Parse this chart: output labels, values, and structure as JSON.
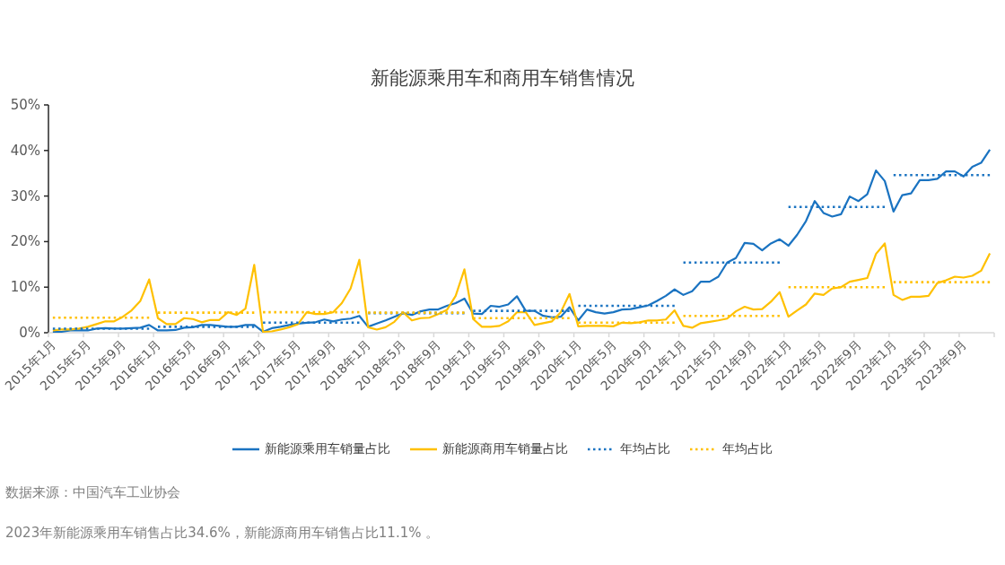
{
  "chart_data": {
    "type": "line",
    "title": "新能源乘用车和商用车销售情况",
    "categories": [
      "2015年1月",
      null,
      null,
      null,
      "2015年5月",
      null,
      null,
      null,
      "2015年9月",
      null,
      null,
      null,
      "2016年1月",
      null,
      null,
      null,
      "2016年5月",
      null,
      null,
      null,
      "2016年9月",
      null,
      null,
      null,
      "2017年1月",
      null,
      null,
      null,
      "2017年5月",
      null,
      null,
      null,
      "2017年9月",
      null,
      null,
      null,
      "2018年1月",
      null,
      null,
      null,
      "2018年5月",
      null,
      null,
      null,
      "2018年9月",
      null,
      null,
      null,
      "2019年1月",
      null,
      null,
      null,
      "2019年5月",
      null,
      null,
      null,
      "2019年9月",
      null,
      null,
      null,
      "2020年1月",
      null,
      null,
      null,
      "2020年5月",
      null,
      null,
      null,
      "2020年9月",
      null,
      null,
      null,
      "2021年1月",
      null,
      null,
      null,
      "2021年5月",
      null,
      null,
      null,
      "2021年9月",
      null,
      null,
      null,
      "2022年1月",
      null,
      null,
      null,
      "2022年5月",
      null,
      null,
      null,
      "2022年9月",
      null,
      null,
      null,
      "2023年1月",
      null,
      null,
      null,
      "2023年5月",
      null,
      null,
      null,
      "2023年9月",
      null,
      null,
      null
    ],
    "ylim": [
      0,
      50
    ],
    "yticks": [
      {
        "value": 0,
        "label": "0%"
      },
      {
        "value": 10,
        "label": "10%"
      },
      {
        "value": 20,
        "label": "20%"
      },
      {
        "value": 30,
        "label": "30%"
      },
      {
        "value": 40,
        "label": "40%"
      },
      {
        "value": 50,
        "label": "50%"
      }
    ],
    "legend": "bottom",
    "series": [
      {
        "name": "新能源乘用车销量占比",
        "color": "#1a73c1",
        "line_style": "solid",
        "values": [
          0.2,
          0.2,
          0.5,
          0.5,
          0.5,
          0.9,
          1.0,
          0.9,
          0.9,
          1.0,
          1.1,
          1.7,
          0.5,
          0.5,
          0.6,
          1.1,
          1.2,
          1.7,
          1.7,
          1.5,
          1.3,
          1.3,
          1.7,
          1.7,
          0.2,
          1.0,
          1.3,
          1.7,
          2.0,
          2.2,
          2.3,
          2.9,
          2.5,
          2.9,
          3.1,
          3.7,
          1.3,
          2.0,
          2.7,
          3.5,
          4.3,
          3.9,
          4.7,
          5.1,
          5.1,
          5.9,
          6.5,
          7.5,
          4.2,
          4.1,
          5.9,
          5.7,
          6.2,
          8.0,
          4.8,
          4.8,
          3.7,
          3.4,
          3.5,
          5.6,
          2.7,
          5.1,
          4.5,
          4.2,
          4.5,
          5.1,
          5.2,
          5.6,
          6.0,
          7.0,
          8.1,
          9.5,
          8.3,
          9.1,
          11.2,
          11.2,
          12.3,
          15.4,
          16.4,
          19.7,
          19.5,
          18.1,
          19.6,
          20.5,
          19.1,
          21.5,
          24.5,
          28.9,
          26.3,
          25.5,
          26.0,
          29.9,
          28.9,
          30.4,
          35.6,
          33.3,
          26.6,
          30.2,
          30.6,
          33.5,
          33.5,
          33.8,
          35.4,
          35.4,
          34.3,
          36.4,
          37.3,
          40.2
        ]
      },
      {
        "name": "新能源商用车销量占比",
        "color": "#ffc000",
        "line_style": "solid",
        "values": [
          0.5,
          0.7,
          0.7,
          0.9,
          1.3,
          1.9,
          2.5,
          2.5,
          3.5,
          4.9,
          7.0,
          11.7,
          3.2,
          1.9,
          1.9,
          3.2,
          3.0,
          2.3,
          2.8,
          2.8,
          4.5,
          3.9,
          5.3,
          14.9,
          0.2,
          0.3,
          0.7,
          1.2,
          1.9,
          4.5,
          4.1,
          4.1,
          4.5,
          6.5,
          9.7,
          16.0,
          1.2,
          0.7,
          1.2,
          2.4,
          4.5,
          2.7,
          3.2,
          3.3,
          4.1,
          5.0,
          8.1,
          13.9,
          3.0,
          1.3,
          1.3,
          1.5,
          2.5,
          4.5,
          4.5,
          1.7,
          2.1,
          2.5,
          4.5,
          8.5,
          1.4,
          1.5,
          1.5,
          1.5,
          1.4,
          2.2,
          2.1,
          2.3,
          2.7,
          2.7,
          2.9,
          4.9,
          1.5,
          1.1,
          2.1,
          2.4,
          2.7,
          3.1,
          4.7,
          5.7,
          5.1,
          5.2,
          6.8,
          8.9,
          3.5,
          4.9,
          6.2,
          8.6,
          8.3,
          9.7,
          10.0,
          11.2,
          11.6,
          12.0,
          17.3,
          19.6,
          8.3,
          7.2,
          7.9,
          7.9,
          8.1,
          10.9,
          11.5,
          12.3,
          12.1,
          12.5,
          13.6,
          17.4
        ]
      },
      {
        "name": "年均占比",
        "color": "#1a73c1",
        "line_style": "dotted",
        "values": [
          0.9,
          0.9,
          0.9,
          0.9,
          0.9,
          0.9,
          0.9,
          0.9,
          0.9,
          0.9,
          0.9,
          0.9,
          1.3,
          1.3,
          1.3,
          1.3,
          1.3,
          1.3,
          1.3,
          1.3,
          1.3,
          1.3,
          1.3,
          1.3,
          2.2,
          2.2,
          2.2,
          2.2,
          2.2,
          2.2,
          2.2,
          2.2,
          2.2,
          2.2,
          2.2,
          2.2,
          4.3,
          4.3,
          4.3,
          4.3,
          4.3,
          4.3,
          4.3,
          4.3,
          4.3,
          4.3,
          4.3,
          4.3,
          4.8,
          4.8,
          4.8,
          4.8,
          4.8,
          4.8,
          4.8,
          4.8,
          4.8,
          4.8,
          4.8,
          4.8,
          5.9,
          5.9,
          5.9,
          5.9,
          5.9,
          5.9,
          5.9,
          5.9,
          5.9,
          5.9,
          5.9,
          5.9,
          15.4,
          15.4,
          15.4,
          15.4,
          15.4,
          15.4,
          15.4,
          15.4,
          15.4,
          15.4,
          15.4,
          15.4,
          27.6,
          27.6,
          27.6,
          27.6,
          27.6,
          27.6,
          27.6,
          27.6,
          27.6,
          27.6,
          27.6,
          27.6,
          34.6,
          34.6,
          34.6,
          34.6,
          34.6,
          34.6,
          34.6,
          34.6,
          34.6,
          34.6,
          34.6,
          34.6
        ]
      },
      {
        "name": "年均占比",
        "color": "#ffc000",
        "line_style": "dotted",
        "values": [
          3.3,
          3.3,
          3.3,
          3.3,
          3.3,
          3.3,
          3.3,
          3.3,
          3.3,
          3.3,
          3.3,
          3.3,
          4.4,
          4.4,
          4.4,
          4.4,
          4.4,
          4.4,
          4.4,
          4.4,
          4.4,
          4.4,
          4.4,
          4.4,
          4.5,
          4.5,
          4.5,
          4.5,
          4.5,
          4.5,
          4.5,
          4.5,
          4.5,
          4.5,
          4.5,
          4.5,
          4.4,
          4.4,
          4.4,
          4.4,
          4.4,
          4.4,
          4.4,
          4.4,
          4.4,
          4.4,
          4.4,
          4.4,
          3.2,
          3.2,
          3.2,
          3.2,
          3.2,
          3.2,
          3.2,
          3.2,
          3.2,
          3.2,
          3.2,
          3.2,
          2.2,
          2.2,
          2.2,
          2.2,
          2.2,
          2.2,
          2.2,
          2.2,
          2.2,
          2.2,
          2.2,
          2.2,
          3.7,
          3.7,
          3.7,
          3.7,
          3.7,
          3.7,
          3.7,
          3.7,
          3.7,
          3.7,
          3.7,
          3.7,
          10.0,
          10.0,
          10.0,
          10.0,
          10.0,
          10.0,
          10.0,
          10.0,
          10.0,
          10.0,
          10.0,
          10.0,
          11.1,
          11.1,
          11.1,
          11.1,
          11.1,
          11.1,
          11.1,
          11.1,
          11.1,
          11.1,
          11.1,
          11.1
        ]
      }
    ],
    "annotations": [
      "数据来源：中国汽车工业协会",
      "2023年新能源乘用车销售占比34.6%，新能源商用车销售占比11.1% 。"
    ]
  }
}
